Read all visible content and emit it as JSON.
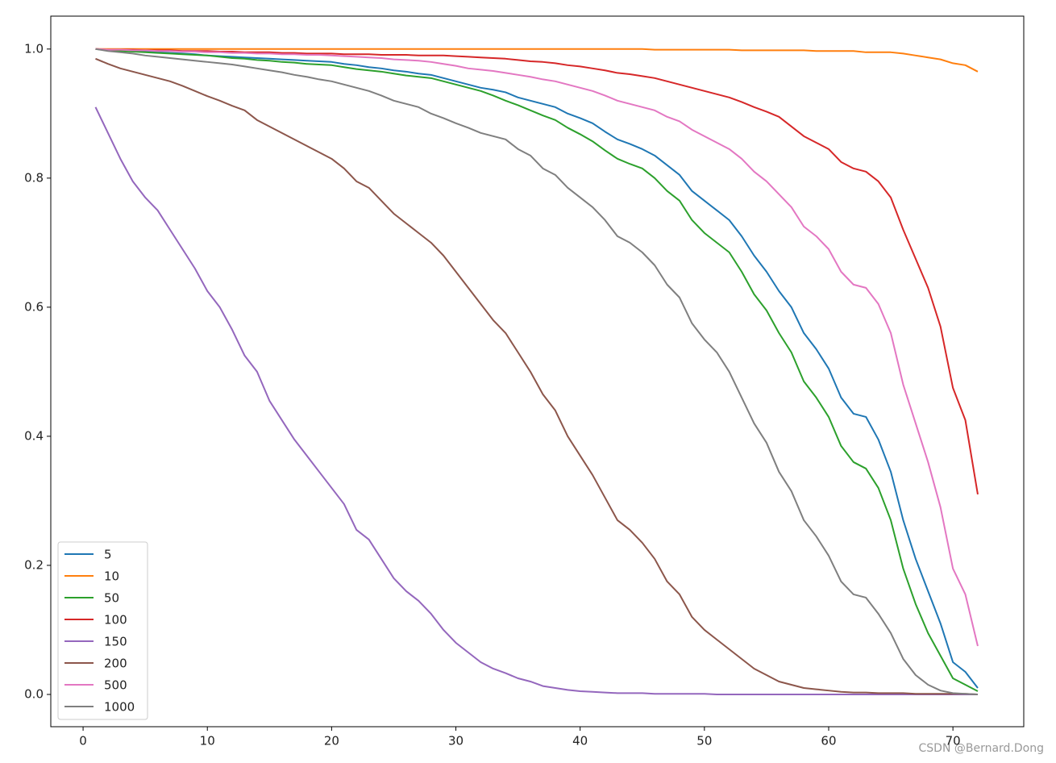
{
  "chart_data": {
    "type": "line",
    "x": [
      1,
      2,
      3,
      4,
      5,
      6,
      7,
      8,
      9,
      10,
      11,
      12,
      13,
      14,
      15,
      16,
      17,
      18,
      19,
      20,
      21,
      22,
      23,
      24,
      25,
      26,
      27,
      28,
      29,
      30,
      31,
      32,
      33,
      34,
      35,
      36,
      37,
      38,
      39,
      40,
      41,
      42,
      43,
      44,
      45,
      46,
      47,
      48,
      49,
      50,
      51,
      52,
      53,
      54,
      55,
      56,
      57,
      58,
      59,
      60,
      61,
      62,
      63,
      64,
      65,
      66,
      67,
      68,
      69,
      70,
      71,
      72
    ],
    "series": [
      {
        "name": "5",
        "color": "#1f77b4",
        "values": [
          1.0,
          0.999,
          0.998,
          0.997,
          0.996,
          0.995,
          0.994,
          0.993,
          0.992,
          0.99,
          0.989,
          0.988,
          0.987,
          0.986,
          0.985,
          0.984,
          0.983,
          0.982,
          0.981,
          0.98,
          0.977,
          0.975,
          0.972,
          0.97,
          0.967,
          0.965,
          0.962,
          0.96,
          0.955,
          0.95,
          0.945,
          0.94,
          0.937,
          0.933,
          0.925,
          0.92,
          0.915,
          0.91,
          0.9,
          0.893,
          0.885,
          0.872,
          0.86,
          0.853,
          0.845,
          0.835,
          0.82,
          0.805,
          0.78,
          0.765,
          0.75,
          0.735,
          0.71,
          0.68,
          0.655,
          0.625,
          0.6,
          0.56,
          0.535,
          0.505,
          0.46,
          0.435,
          0.43,
          0.395,
          0.345,
          0.27,
          0.21,
          0.16,
          0.11,
          0.05,
          0.035,
          0.01
        ]
      },
      {
        "name": "10",
        "color": "#ff7f0e",
        "values": [
          1.0,
          1.0,
          1.0,
          1.0,
          1.0,
          1.0,
          1.0,
          1.0,
          1.0,
          1.0,
          1.0,
          1.0,
          1.0,
          1.0,
          1.0,
          1.0,
          1.0,
          1.0,
          1.0,
          1.0,
          1.0,
          1.0,
          1.0,
          1.0,
          1.0,
          1.0,
          1.0,
          1.0,
          1.0,
          1.0,
          1.0,
          1.0,
          1.0,
          1.0,
          1.0,
          1.0,
          1.0,
          1.0,
          1.0,
          1.0,
          1.0,
          1.0,
          1.0,
          1.0,
          1.0,
          0.999,
          0.999,
          0.999,
          0.999,
          0.999,
          0.999,
          0.999,
          0.998,
          0.998,
          0.998,
          0.998,
          0.998,
          0.998,
          0.997,
          0.997,
          0.997,
          0.997,
          0.995,
          0.995,
          0.995,
          0.993,
          0.99,
          0.987,
          0.984,
          0.978,
          0.975,
          0.965
        ]
      },
      {
        "name": "50",
        "color": "#2ca02c",
        "values": [
          1.0,
          0.998,
          0.997,
          0.996,
          0.995,
          0.994,
          0.993,
          0.992,
          0.991,
          0.99,
          0.988,
          0.986,
          0.985,
          0.983,
          0.982,
          0.98,
          0.979,
          0.977,
          0.976,
          0.975,
          0.972,
          0.969,
          0.967,
          0.965,
          0.962,
          0.959,
          0.957,
          0.955,
          0.95,
          0.945,
          0.94,
          0.935,
          0.928,
          0.92,
          0.913,
          0.905,
          0.897,
          0.89,
          0.878,
          0.868,
          0.857,
          0.843,
          0.83,
          0.822,
          0.815,
          0.8,
          0.78,
          0.765,
          0.735,
          0.715,
          0.7,
          0.685,
          0.655,
          0.62,
          0.595,
          0.56,
          0.53,
          0.485,
          0.46,
          0.43,
          0.385,
          0.36,
          0.35,
          0.32,
          0.27,
          0.195,
          0.14,
          0.095,
          0.06,
          0.025,
          0.015,
          0.005
        ]
      },
      {
        "name": "100",
        "color": "#d62728",
        "values": [
          1.0,
          0.999,
          0.999,
          0.999,
          0.998,
          0.998,
          0.998,
          0.997,
          0.997,
          0.997,
          0.996,
          0.996,
          0.995,
          0.995,
          0.995,
          0.994,
          0.994,
          0.993,
          0.993,
          0.993,
          0.992,
          0.992,
          0.992,
          0.991,
          0.991,
          0.991,
          0.99,
          0.99,
          0.99,
          0.989,
          0.988,
          0.987,
          0.986,
          0.985,
          0.983,
          0.981,
          0.98,
          0.978,
          0.975,
          0.973,
          0.97,
          0.967,
          0.963,
          0.961,
          0.958,
          0.955,
          0.95,
          0.945,
          0.94,
          0.935,
          0.93,
          0.925,
          0.918,
          0.91,
          0.903,
          0.895,
          0.88,
          0.865,
          0.855,
          0.845,
          0.825,
          0.815,
          0.81,
          0.795,
          0.77,
          0.72,
          0.675,
          0.63,
          0.57,
          0.475,
          0.425,
          0.31
        ]
      },
      {
        "name": "150",
        "color": "#9467bd",
        "values": [
          0.91,
          0.87,
          0.83,
          0.795,
          0.77,
          0.75,
          0.72,
          0.69,
          0.66,
          0.625,
          0.6,
          0.565,
          0.525,
          0.5,
          0.455,
          0.425,
          0.395,
          0.37,
          0.345,
          0.32,
          0.295,
          0.255,
          0.24,
          0.21,
          0.18,
          0.16,
          0.145,
          0.125,
          0.1,
          0.08,
          0.065,
          0.05,
          0.04,
          0.033,
          0.025,
          0.02,
          0.013,
          0.01,
          0.007,
          0.005,
          0.004,
          0.003,
          0.002,
          0.002,
          0.002,
          0.001,
          0.001,
          0.001,
          0.001,
          0.001,
          0,
          0,
          0,
          0,
          0,
          0,
          0,
          0,
          0,
          0,
          0,
          0,
          0,
          0,
          0,
          0,
          0,
          0,
          0,
          0,
          0,
          0
        ]
      },
      {
        "name": "200",
        "color": "#8c564b",
        "values": [
          0.985,
          0.977,
          0.97,
          0.965,
          0.96,
          0.955,
          0.95,
          0.943,
          0.935,
          0.927,
          0.92,
          0.912,
          0.905,
          0.89,
          0.88,
          0.87,
          0.86,
          0.85,
          0.84,
          0.83,
          0.815,
          0.795,
          0.785,
          0.765,
          0.745,
          0.73,
          0.715,
          0.7,
          0.68,
          0.655,
          0.63,
          0.605,
          0.58,
          0.56,
          0.53,
          0.5,
          0.465,
          0.44,
          0.4,
          0.37,
          0.34,
          0.305,
          0.27,
          0.255,
          0.235,
          0.21,
          0.175,
          0.155,
          0.12,
          0.1,
          0.085,
          0.07,
          0.055,
          0.04,
          0.03,
          0.02,
          0.015,
          0.01,
          0.008,
          0.006,
          0.004,
          0.003,
          0.003,
          0.002,
          0.002,
          0.002,
          0.001,
          0.001,
          0.001,
          0.001,
          0.001,
          0.0
        ]
      },
      {
        "name": "500",
        "color": "#e377c2",
        "values": [
          1.0,
          0.999,
          0.999,
          0.998,
          0.998,
          0.997,
          0.997,
          0.996,
          0.996,
          0.995,
          0.995,
          0.994,
          0.994,
          0.993,
          0.993,
          0.992,
          0.992,
          0.991,
          0.991,
          0.99,
          0.989,
          0.988,
          0.987,
          0.986,
          0.984,
          0.983,
          0.982,
          0.98,
          0.977,
          0.974,
          0.97,
          0.968,
          0.966,
          0.963,
          0.96,
          0.957,
          0.953,
          0.95,
          0.945,
          0.94,
          0.935,
          0.928,
          0.92,
          0.915,
          0.91,
          0.905,
          0.895,
          0.888,
          0.875,
          0.865,
          0.855,
          0.845,
          0.83,
          0.81,
          0.795,
          0.775,
          0.755,
          0.725,
          0.71,
          0.69,
          0.655,
          0.635,
          0.63,
          0.605,
          0.56,
          0.48,
          0.42,
          0.36,
          0.29,
          0.195,
          0.155,
          0.075
        ]
      },
      {
        "name": "1000",
        "color": "#7f7f7f",
        "values": [
          1.0,
          0.997,
          0.995,
          0.993,
          0.99,
          0.988,
          0.986,
          0.984,
          0.982,
          0.98,
          0.978,
          0.976,
          0.973,
          0.97,
          0.967,
          0.964,
          0.96,
          0.957,
          0.953,
          0.95,
          0.945,
          0.94,
          0.935,
          0.928,
          0.92,
          0.915,
          0.91,
          0.9,
          0.893,
          0.885,
          0.878,
          0.87,
          0.865,
          0.86,
          0.845,
          0.835,
          0.815,
          0.805,
          0.785,
          0.77,
          0.755,
          0.735,
          0.71,
          0.7,
          0.685,
          0.665,
          0.635,
          0.615,
          0.575,
          0.55,
          0.53,
          0.5,
          0.46,
          0.42,
          0.39,
          0.345,
          0.315,
          0.27,
          0.245,
          0.215,
          0.175,
          0.155,
          0.15,
          0.125,
          0.095,
          0.055,
          0.03,
          0.015,
          0.006,
          0.002,
          0.001,
          0.0
        ]
      }
    ],
    "xlim": [
      -2.6,
      75.7
    ],
    "xticks": [
      0,
      10,
      20,
      30,
      40,
      50,
      60,
      70
    ],
    "ylim": [
      -0.05,
      1.051
    ],
    "yticks": [
      {
        "value": 0,
        "label": "0.0"
      },
      0.2,
      0.4,
      0.6,
      0.8,
      {
        "value": 1,
        "label": "1.0"
      }
    ],
    "grid": false,
    "legend": "lower left",
    "watermark": "CSDN @Bernard.Dong"
  }
}
